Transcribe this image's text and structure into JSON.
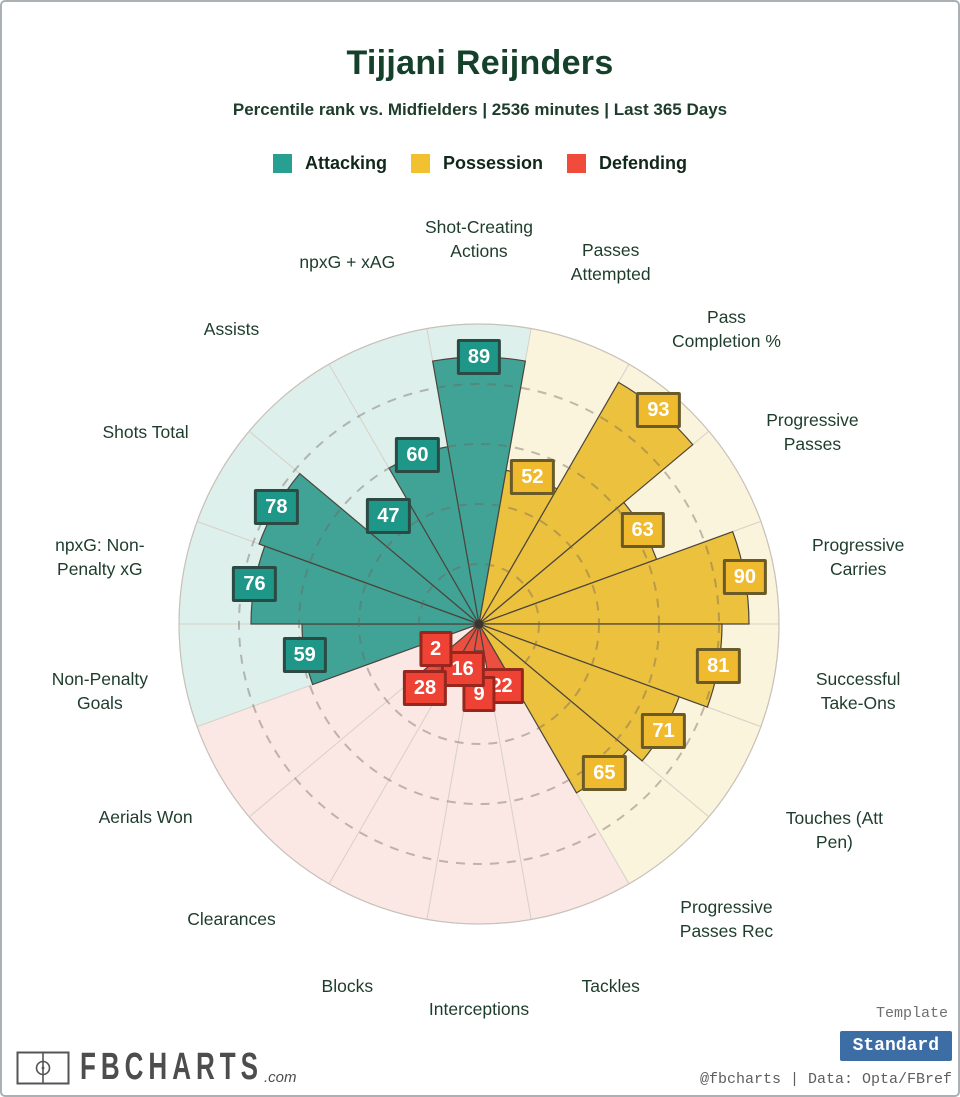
{
  "header": {
    "title": "Tijjani Reijnders",
    "subtitle": "Percentile rank vs. Midfielders | 2536 minutes | Last 365 Days"
  },
  "legend": [
    {
      "label": "Attacking",
      "color": "#28a091"
    },
    {
      "label": "Possession",
      "color": "#f1c12f"
    },
    {
      "label": "Defending",
      "color": "#f14b3c"
    }
  ],
  "chart_data": {
    "type": "pizza",
    "description": "Percentile pizza chart: 18 slices of 20 degrees each, clockwise from top; wedge radius = percentile rank 0-100.",
    "rlim": [
      0,
      100
    ],
    "ring_gridlines": [
      20,
      40,
      60,
      80
    ],
    "groups": {
      "Attacking": {
        "slice": "#41a396",
        "badge": "#1e9788",
        "badge_border": "#2c4a44",
        "bg": "#def0ec"
      },
      "Possession": {
        "slice": "#ecc13e",
        "badge": "#efba2e",
        "badge_border": "#6a5a28",
        "bg": "#fbf4dc"
      },
      "Defending": {
        "slice": "#ea4f3f",
        "badge": "#ee4334",
        "badge_border": "#97271e",
        "bg": "#fbe8e5"
      }
    },
    "slices": [
      {
        "label": "Shot-Creating\nActions",
        "value": 89,
        "group": "Attacking"
      },
      {
        "label": "Passes\nAttempted",
        "value": 52,
        "group": "Possession"
      },
      {
        "label": "Pass\nCompletion %",
        "value": 93,
        "group": "Possession"
      },
      {
        "label": "Progressive\nPasses",
        "value": 63,
        "group": "Possession"
      },
      {
        "label": "Progressive\nCarries",
        "value": 90,
        "group": "Possession"
      },
      {
        "label": "Successful\nTake-Ons",
        "value": 81,
        "group": "Possession"
      },
      {
        "label": "Touches (Att\nPen)",
        "value": 71,
        "group": "Possession"
      },
      {
        "label": "Progressive\nPasses Rec",
        "value": 65,
        "group": "Possession"
      },
      {
        "label": "Tackles",
        "value": 22,
        "group": "Defending"
      },
      {
        "label": "Interceptions",
        "value": 9,
        "group": "Defending"
      },
      {
        "label": "Blocks",
        "value": 16,
        "group": "Defending"
      },
      {
        "label": "Clearances",
        "value": 28,
        "group": "Defending"
      },
      {
        "label": "Aerials Won",
        "value": 2,
        "group": "Defending"
      },
      {
        "label": "Non-Penalty\nGoals",
        "value": 59,
        "group": "Attacking"
      },
      {
        "label": "npxG: Non-\nPenalty xG",
        "value": 76,
        "group": "Attacking"
      },
      {
        "label": "Shots Total",
        "value": 78,
        "group": "Attacking"
      },
      {
        "label": "Assists",
        "value": 47,
        "group": "Attacking"
      },
      {
        "label": "npxG + xAG",
        "value": 60,
        "group": "Attacking"
      }
    ]
  },
  "footer": {
    "brand": {
      "name": "FBCHARTS",
      "tld": ".com"
    },
    "template_label": "Template",
    "template_value": "Standard",
    "template_button_color": "#3c6ea5",
    "credit": "@fbcharts | Data: Opta/FBref"
  }
}
